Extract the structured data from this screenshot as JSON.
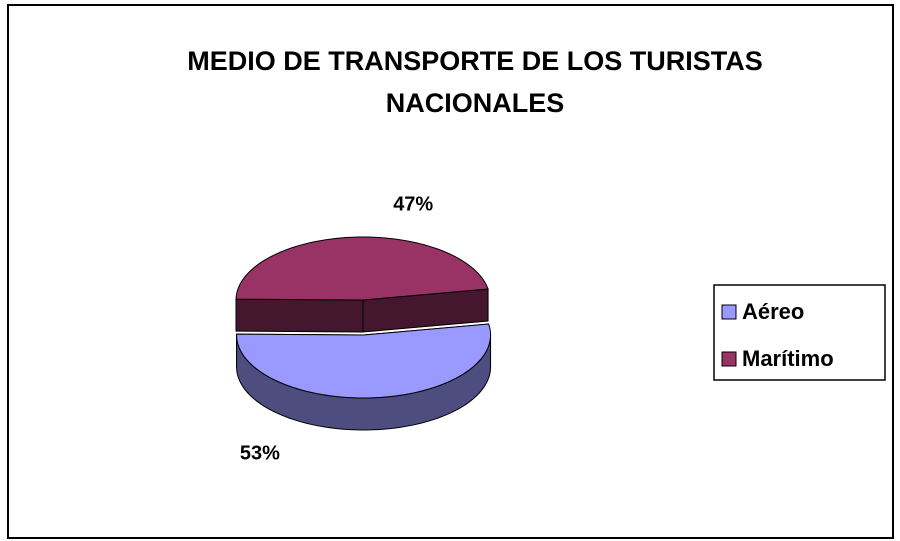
{
  "chart_data": {
    "type": "pie",
    "title": "MEDIO DE TRANSPORTE DE LOS TURISTAS NACIONALES",
    "categories": [
      "Aéreo",
      "Marítimo"
    ],
    "values": [
      53,
      47
    ],
    "value_labels": [
      "53%",
      "47%"
    ],
    "colors": [
      "#9999ff",
      "#993366"
    ],
    "legend": "right"
  }
}
